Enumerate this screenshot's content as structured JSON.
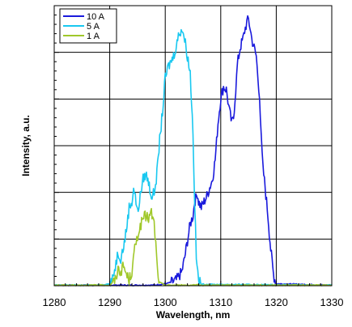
{
  "chart_data": {
    "type": "line",
    "xlabel": "Wavelength, nm",
    "ylabel": "Intensity, a.u.",
    "xlim": [
      1280,
      1330
    ],
    "ylim": [
      0,
      1
    ],
    "x_ticks": [
      "1280",
      "1290",
      "1300",
      "1310",
      "1320",
      "1330"
    ],
    "grid": true,
    "legend_position": "top-left",
    "series": [
      {
        "name": "10 A",
        "color": "#1a1adc",
        "points": [
          [
            1280,
            0
          ],
          [
            1298,
            0
          ],
          [
            1300,
            0.005
          ],
          [
            1301,
            0.01
          ],
          [
            1302,
            0.02
          ],
          [
            1303,
            0.05
          ],
          [
            1303.5,
            0.1
          ],
          [
            1304,
            0.16
          ],
          [
            1304.5,
            0.22
          ],
          [
            1305,
            0.25
          ],
          [
            1305.3,
            0.3
          ],
          [
            1305.5,
            0.31
          ],
          [
            1305.8,
            0.33
          ],
          [
            1306,
            0.3
          ],
          [
            1306.5,
            0.28
          ],
          [
            1307,
            0.3
          ],
          [
            1307.5,
            0.32
          ],
          [
            1308,
            0.35
          ],
          [
            1308.5,
            0.38
          ],
          [
            1309,
            0.45
          ],
          [
            1309.5,
            0.58
          ],
          [
            1310,
            0.67
          ],
          [
            1310.5,
            0.71
          ],
          [
            1311,
            0.7
          ],
          [
            1311.3,
            0.66
          ],
          [
            1311.6,
            0.62
          ],
          [
            1312,
            0.58
          ],
          [
            1312.3,
            0.6
          ],
          [
            1312.7,
            0.7
          ],
          [
            1313,
            0.79
          ],
          [
            1313.5,
            0.85
          ],
          [
            1314,
            0.88
          ],
          [
            1314.3,
            0.91
          ],
          [
            1314.7,
            0.94
          ],
          [
            1315,
            0.95
          ],
          [
            1315.3,
            0.92
          ],
          [
            1315.6,
            0.88
          ],
          [
            1316,
            0.85
          ],
          [
            1316.4,
            0.82
          ],
          [
            1316.7,
            0.74
          ],
          [
            1317,
            0.68
          ],
          [
            1317.3,
            0.52
          ],
          [
            1317.6,
            0.42
          ],
          [
            1318,
            0.35
          ],
          [
            1318.5,
            0.25
          ],
          [
            1319,
            0.13
          ],
          [
            1319.5,
            0.04
          ],
          [
            1320,
            0.005
          ],
          [
            1330,
            0
          ]
        ]
      },
      {
        "name": "5 A",
        "color": "#19c8f0",
        "points": [
          [
            1280,
            0
          ],
          [
            1288,
            0
          ],
          [
            1290,
            0.005
          ],
          [
            1290.5,
            0.02
          ],
          [
            1291,
            0.07
          ],
          [
            1291.5,
            0.12
          ],
          [
            1292,
            0.1
          ],
          [
            1292.5,
            0.14
          ],
          [
            1293,
            0.2
          ],
          [
            1293.5,
            0.28
          ],
          [
            1294,
            0.3
          ],
          [
            1294.3,
            0.35
          ],
          [
            1294.6,
            0.32
          ],
          [
            1295,
            0.26
          ],
          [
            1295.5,
            0.32
          ],
          [
            1296,
            0.38
          ],
          [
            1296.5,
            0.4
          ],
          [
            1297,
            0.37
          ],
          [
            1297.5,
            0.32
          ],
          [
            1298,
            0.33
          ],
          [
            1298.5,
            0.4
          ],
          [
            1299,
            0.52
          ],
          [
            1299.5,
            0.62
          ],
          [
            1300,
            0.74
          ],
          [
            1300.5,
            0.78
          ],
          [
            1301,
            0.8
          ],
          [
            1301.5,
            0.82
          ],
          [
            1302,
            0.86
          ],
          [
            1302.5,
            0.9
          ],
          [
            1303,
            0.92
          ],
          [
            1303.5,
            0.88
          ],
          [
            1304,
            0.82
          ],
          [
            1304.5,
            0.76
          ],
          [
            1305,
            0.55
          ],
          [
            1305.3,
            0.3
          ],
          [
            1305.6,
            0.1
          ],
          [
            1306,
            0.02
          ],
          [
            1306.5,
            0.003
          ],
          [
            1330,
            0
          ]
        ]
      },
      {
        "name": "1 A",
        "color": "#a0c82a",
        "points": [
          [
            1280,
            0
          ],
          [
            1290,
            0
          ],
          [
            1291,
            0.02
          ],
          [
            1291.5,
            0.06
          ],
          [
            1292,
            0.05
          ],
          [
            1292.5,
            0.07
          ],
          [
            1293,
            0.04
          ],
          [
            1293.5,
            0.02
          ],
          [
            1294,
            0.05
          ],
          [
            1294.5,
            0.13
          ],
          [
            1295,
            0.18
          ],
          [
            1295.5,
            0.21
          ],
          [
            1296,
            0.24
          ],
          [
            1296.5,
            0.25
          ],
          [
            1297,
            0.24
          ],
          [
            1297.5,
            0.26
          ],
          [
            1298,
            0.22
          ],
          [
            1298.3,
            0.15
          ],
          [
            1298.6,
            0.05
          ],
          [
            1299,
            0.01
          ],
          [
            1300,
            0
          ],
          [
            1330,
            0
          ]
        ]
      }
    ]
  }
}
